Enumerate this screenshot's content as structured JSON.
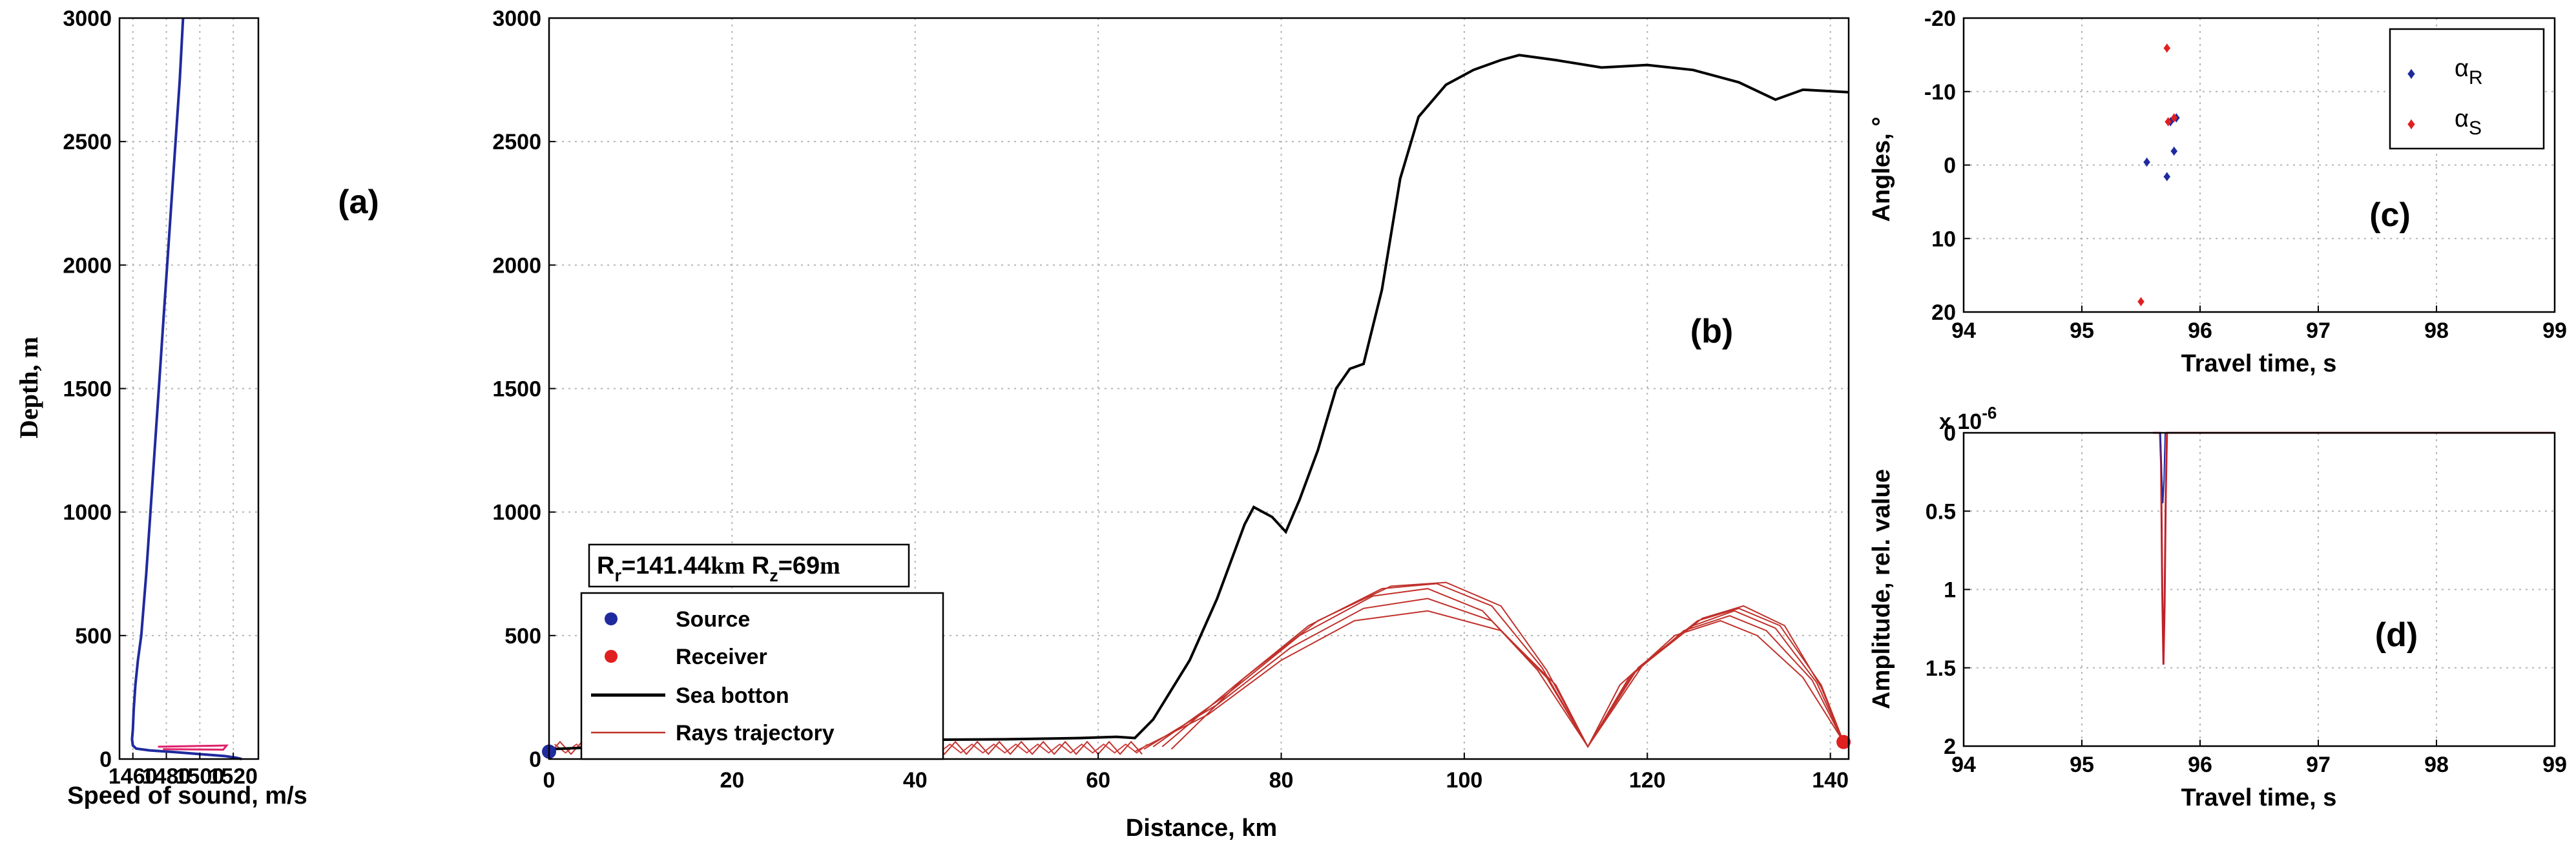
{
  "chart_data": [
    {
      "panel": "(a)",
      "type": "line",
      "xlabel": "Speed of sound, m/s",
      "ylabel": "Depth, m",
      "xlim": [
        1452,
        1535
      ],
      "ylim": [
        3000,
        0
      ],
      "xticks": [
        1460,
        1480,
        1500,
        1520
      ],
      "yticks": [
        0,
        500,
        1000,
        1500,
        2000,
        2500,
        3000
      ],
      "grid": true,
      "series": [
        {
          "color": "#1f2a9e",
          "points": [
            [
              1525,
              0
            ],
            [
              1522,
              5
            ],
            [
              1515,
              12
            ],
            [
              1500,
              20
            ],
            [
              1485,
              28
            ],
            [
              1470,
              35
            ],
            [
              1462,
              42
            ],
            [
              1460,
              55
            ],
            [
              1459.5,
              80
            ],
            [
              1460,
              120
            ],
            [
              1460.5,
              200
            ],
            [
              1461.5,
              300
            ],
            [
              1463,
              400
            ],
            [
              1465,
              500
            ],
            [
              1468,
              750
            ],
            [
              1470.5,
              1000
            ],
            [
              1473,
              1250
            ],
            [
              1475.5,
              1500
            ],
            [
              1478,
              1750
            ],
            [
              1480.5,
              2000
            ],
            [
              1483,
              2250
            ],
            [
              1485.5,
              2500
            ],
            [
              1488,
              2750
            ],
            [
              1490,
              3000
            ]
          ]
        },
        {
          "color": "#e0206a",
          "points": [
            [
              1475,
              50
            ],
            [
              1516,
              55
            ],
            [
              1514,
              38
            ],
            [
              1478,
              40
            ]
          ]
        }
      ]
    },
    {
      "panel": "(b)",
      "type": "line",
      "xlabel": "Distance, km",
      "ylabel": "",
      "xlim": [
        0,
        142
      ],
      "ylim": [
        3000,
        0
      ],
      "xticks": [
        0,
        20,
        40,
        60,
        80,
        100,
        120,
        140
      ],
      "yticks": [
        0,
        500,
        1000,
        1500,
        2000,
        2500,
        3000
      ],
      "grid": true,
      "annotation": {
        "range_label": "R",
        "range_sub": "r",
        "range_value": "=141.44",
        "range_unit": "km",
        "depth_label": " R",
        "depth_sub": "z",
        "depth_value": "=69",
        "depth_unit": "m"
      },
      "legend": {
        "position": "bottom-left",
        "items": [
          {
            "label": "Source",
            "marker": "dot",
            "color": "#1f2a9e"
          },
          {
            "label": "Receiver",
            "marker": "dot",
            "color": "#e02020"
          },
          {
            "label": "Sea botton",
            "marker": "line",
            "color": "#000000"
          },
          {
            "label": "Rays trajectory",
            "marker": "line",
            "color": "#c0302a"
          }
        ]
      },
      "source": [
        0,
        30
      ],
      "receiver": [
        141.44,
        69
      ],
      "sea_bottom": [
        [
          0,
          40
        ],
        [
          10,
          55
        ],
        [
          20,
          65
        ],
        [
          30,
          72
        ],
        [
          40,
          78
        ],
        [
          50,
          80
        ],
        [
          58,
          85
        ],
        [
          62,
          90
        ],
        [
          64,
          85
        ],
        [
          66,
          160
        ],
        [
          70,
          400
        ],
        [
          73,
          650
        ],
        [
          76,
          950
        ],
        [
          77,
          1020
        ],
        [
          79,
          980
        ],
        [
          80.5,
          920
        ],
        [
          82,
          1050
        ],
        [
          84,
          1250
        ],
        [
          86,
          1500
        ],
        [
          87.5,
          1580
        ],
        [
          89,
          1600
        ],
        [
          91,
          1900
        ],
        [
          93,
          2350
        ],
        [
          95,
          2600
        ],
        [
          98,
          2730
        ],
        [
          101,
          2790
        ],
        [
          104,
          2830
        ],
        [
          106,
          2850
        ],
        [
          110,
          2830
        ],
        [
          115,
          2800
        ],
        [
          120,
          2810
        ],
        [
          125,
          2790
        ],
        [
          130,
          2740
        ],
        [
          134,
          2670
        ],
        [
          137,
          2710
        ],
        [
          142,
          2700
        ]
      ],
      "rays": [
        [
          [
            64,
            30
          ],
          [
            72,
            180
          ],
          [
            80,
            400
          ],
          [
            88,
            560
          ],
          [
            96,
            600
          ],
          [
            104,
            520
          ],
          [
            110,
            300
          ],
          [
            113.5,
            50
          ],
          [
            117,
            300
          ],
          [
            123,
            500
          ],
          [
            128,
            560
          ],
          [
            132,
            500
          ],
          [
            137,
            330
          ],
          [
            141.44,
            69
          ]
        ],
        [
          [
            65,
            40
          ],
          [
            73,
            220
          ],
          [
            81,
            450
          ],
          [
            89,
            610
          ],
          [
            96,
            650
          ],
          [
            103,
            560
          ],
          [
            109,
            330
          ],
          [
            113.5,
            50
          ],
          [
            118,
            330
          ],
          [
            124,
            520
          ],
          [
            129,
            580
          ],
          [
            133,
            520
          ],
          [
            138,
            320
          ],
          [
            141.44,
            69
          ]
        ],
        [
          [
            66,
            50
          ],
          [
            74,
            260
          ],
          [
            82,
            500
          ],
          [
            90,
            660
          ],
          [
            96,
            690
          ],
          [
            102,
            600
          ],
          [
            108,
            360
          ],
          [
            113.5,
            50
          ],
          [
            118.5,
            350
          ],
          [
            125,
            540
          ],
          [
            129.5,
            600
          ],
          [
            134,
            530
          ],
          [
            138.5,
            310
          ],
          [
            141.44,
            69
          ]
        ],
        [
          [
            67,
            50
          ],
          [
            75,
            300
          ],
          [
            83,
            540
          ],
          [
            91,
            690
          ],
          [
            97,
            710
          ],
          [
            103,
            620
          ],
          [
            108.5,
            370
          ],
          [
            113.5,
            50
          ],
          [
            119,
            370
          ],
          [
            125.5,
            560
          ],
          [
            130,
            610
          ],
          [
            134.5,
            540
          ],
          [
            139,
            300
          ],
          [
            141.44,
            69
          ]
        ],
        [
          [
            68,
            40
          ],
          [
            76,
            330
          ],
          [
            84,
            560
          ],
          [
            92,
            700
          ],
          [
            98,
            715
          ],
          [
            104,
            620
          ],
          [
            109,
            360
          ],
          [
            113.5,
            50
          ],
          [
            119.5,
            380
          ],
          [
            126,
            570
          ],
          [
            130.5,
            620
          ],
          [
            135,
            540
          ],
          [
            139,
            290
          ],
          [
            141.44,
            69
          ]
        ]
      ]
    },
    {
      "panel": "(c)",
      "type": "scatter",
      "xlabel": "Travel time, s",
      "ylabel": "Angles, °",
      "xlim": [
        94,
        99
      ],
      "ylim": [
        -20,
        20
      ],
      "xticks": [
        94,
        95,
        96,
        97,
        98,
        99
      ],
      "yticks": [
        -20,
        -10,
        0,
        10,
        20
      ],
      "grid": true,
      "legend": {
        "position": "top-right",
        "items": [
          {
            "label": "α",
            "sub": "R",
            "color": "#1f2a9e"
          },
          {
            "label": "α",
            "sub": "S",
            "color": "#e02020"
          }
        ]
      },
      "series": [
        {
          "name": "αR",
          "color": "#1f2a9e",
          "points": [
            [
              95.55,
              -0.5
            ],
            [
              95.72,
              1.5
            ],
            [
              95.78,
              -2.0
            ],
            [
              95.75,
              -6.0
            ],
            [
              95.8,
              -6.5
            ]
          ]
        },
        {
          "name": "αS",
          "color": "#e02020",
          "points": [
            [
              95.5,
              18.5
            ],
            [
              95.73,
              -6.0
            ],
            [
              95.78,
              -6.5
            ],
            [
              95.72,
              -16.0
            ]
          ]
        }
      ]
    },
    {
      "panel": "(d)",
      "type": "line",
      "xlabel": "Travel time, s",
      "ylabel": "Amplitude, rel. value",
      "xlim": [
        94,
        99
      ],
      "ylim": [
        0,
        2
      ],
      "xticks": [
        94,
        95,
        96,
        97,
        98,
        99
      ],
      "yticks": [
        0,
        0.5,
        1,
        1.5,
        2
      ],
      "scale_note": "x 10",
      "scale_exp": "-6",
      "grid": true,
      "series": [
        {
          "color": "#c0202a",
          "points": [
            [
              95.6,
              0
            ],
            [
              95.66,
              0
            ],
            [
              95.67,
              0.2
            ],
            [
              95.68,
              1.0
            ],
            [
              95.69,
              1.48
            ],
            [
              95.7,
              1.1
            ],
            [
              95.71,
              0.4
            ],
            [
              95.72,
              0
            ],
            [
              99,
              0
            ]
          ]
        },
        {
          "color": "#1f2a9e",
          "points": [
            [
              95.665,
              0
            ],
            [
              95.675,
              0.25
            ],
            [
              95.685,
              0.45
            ],
            [
              95.695,
              0.3
            ],
            [
              95.705,
              0
            ]
          ]
        }
      ]
    }
  ]
}
